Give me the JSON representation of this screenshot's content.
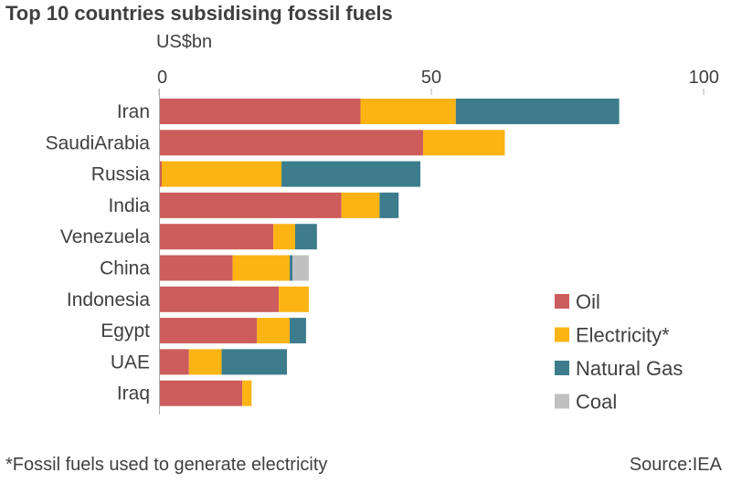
{
  "chart_data": {
    "type": "bar",
    "orientation": "horizontal",
    "stacked": true,
    "title": "Top 10 countries subsidising fossil fuels",
    "unit_label": "US$bn",
    "xlim": [
      0,
      100
    ],
    "xticks": [
      0,
      50,
      100
    ],
    "grid": false,
    "legend_position": "bottom-right",
    "categories": [
      "Iran",
      "SaudiArabia",
      "Russia",
      "India",
      "Venezuela",
      "China",
      "Indonesia",
      "Egypt",
      "UAE",
      "Iraq"
    ],
    "series": [
      {
        "name": "Oil",
        "color": "#cd5c5c",
        "values": [
          37.0,
          48.5,
          0.5,
          33.5,
          21.0,
          13.5,
          22.0,
          18.0,
          5.5,
          15.3
        ]
      },
      {
        "name": "Electricity*",
        "color": "#fbb414",
        "values": [
          17.5,
          15.0,
          22.0,
          7.0,
          4.0,
          10.5,
          5.5,
          6.0,
          6.0,
          1.7
        ]
      },
      {
        "name": "Natural Gas",
        "color": "#3c7c8c",
        "values": [
          30.0,
          0,
          25.5,
          3.5,
          4.0,
          0.5,
          0,
          3.0,
          12.0,
          0
        ]
      },
      {
        "name": "Coal",
        "color": "#c0c0c0",
        "values": [
          0,
          0,
          0,
          0,
          0,
          3.0,
          0,
          0,
          0,
          0
        ]
      }
    ]
  },
  "footnote": "*Fossil fuels used to generate electricity",
  "source": "Source:IEA"
}
